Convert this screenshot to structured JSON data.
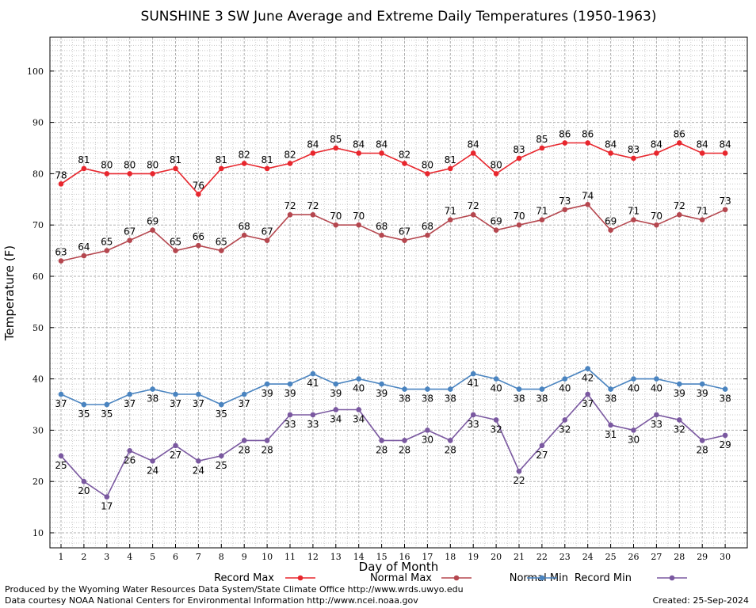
{
  "chart_data": {
    "type": "line",
    "title": "SUNSHINE 3 SW June Average and Extreme Daily Temperatures (1950-1963)",
    "xlabel": "Day of Month",
    "ylabel": "Temperature (F)",
    "x": [
      1,
      2,
      3,
      4,
      5,
      6,
      7,
      8,
      9,
      10,
      11,
      12,
      13,
      14,
      15,
      16,
      17,
      18,
      19,
      20,
      21,
      22,
      23,
      24,
      25,
      26,
      27,
      28,
      29,
      30
    ],
    "ylim": [
      5,
      106
    ],
    "yticks": [
      10,
      20,
      30,
      40,
      50,
      60,
      70,
      80,
      90,
      100
    ],
    "grid": true,
    "legend_position": "bottom",
    "series": [
      {
        "name": "Record Max",
        "color": "#e8262d",
        "label_pos": "above",
        "values": [
          78,
          81,
          80,
          80,
          80,
          81,
          76,
          81,
          82,
          81,
          82,
          84,
          85,
          84,
          84,
          82,
          80,
          81,
          84,
          80,
          83,
          85,
          86,
          86,
          84,
          83,
          84,
          86,
          84,
          84
        ]
      },
      {
        "name": "Normal Max",
        "color": "#b5474f",
        "label_pos": "above",
        "values": [
          63,
          64,
          65,
          67,
          69,
          65,
          66,
          65,
          68,
          67,
          72,
          72,
          70,
          70,
          68,
          67,
          68,
          71,
          72,
          69,
          70,
          71,
          73,
          74,
          69,
          71,
          70,
          72,
          71,
          73
        ]
      },
      {
        "name": "Normal Min",
        "color": "#4a84c0",
        "label_pos": "below",
        "values": [
          37,
          35,
          35,
          37,
          38,
          37,
          37,
          35,
          37,
          39,
          39,
          41,
          39,
          40,
          39,
          38,
          38,
          38,
          41,
          40,
          38,
          38,
          40,
          42,
          38,
          40,
          40,
          39,
          39,
          38
        ]
      },
      {
        "name": "Record Min",
        "color": "#7a58a0",
        "label_pos": "below",
        "values": [
          25,
          20,
          17,
          26,
          24,
          27,
          24,
          25,
          28,
          28,
          33,
          33,
          34,
          34,
          28,
          28,
          30,
          28,
          33,
          32,
          22,
          27,
          32,
          37,
          31,
          30,
          33,
          32,
          28,
          29
        ]
      }
    ]
  },
  "footer": {
    "produced_by": "Produced by the Wyoming Water Resources Data System/State Climate Office http://www.wrds.uwyo.edu",
    "data_courtesy": "Data courtesy NOAA National Centers for Environmental Information http://www.ncei.noaa.gov",
    "created": "Created:  25-Sep-2024"
  }
}
